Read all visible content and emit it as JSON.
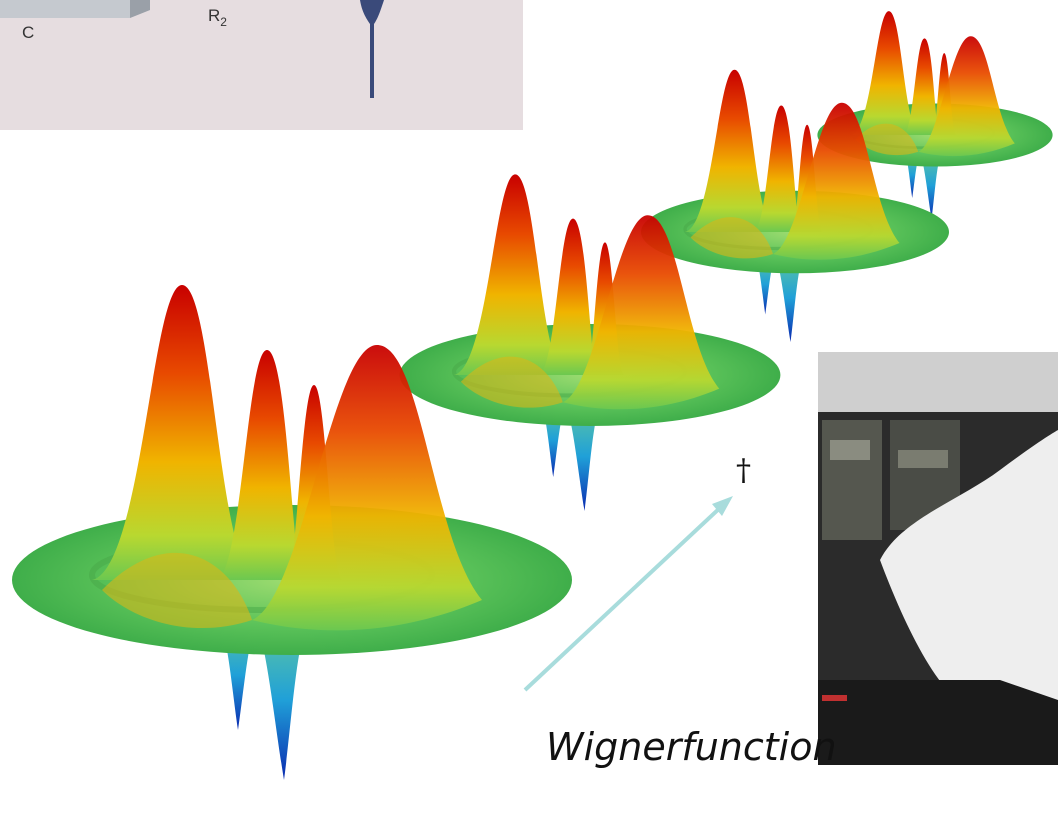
{
  "inset": {
    "label_c": "C",
    "label_r": "R",
    "label_r_sub": "2"
  },
  "annotation": {
    "dagger": "†",
    "caption": "Wignerfunction"
  }
}
